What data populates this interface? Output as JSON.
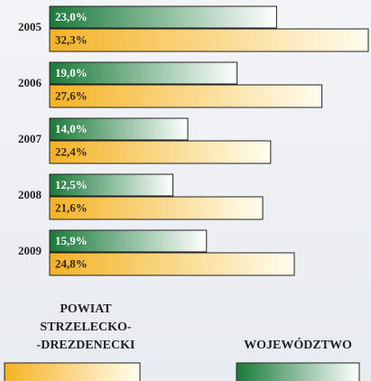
{
  "chart_data": {
    "type": "bar",
    "orientation": "horizontal",
    "categories": [
      "2005",
      "2006",
      "2007",
      "2008",
      "2009"
    ],
    "series": [
      {
        "name": "WOJEWÓDZTWO",
        "color": "#1a7a3a",
        "values": [
          23.0,
          19.0,
          14.0,
          12.5,
          15.9
        ],
        "value_labels": [
          "23,0%",
          "19,0%",
          "14,0%",
          "12,5%",
          "15,9%"
        ]
      },
      {
        "name": "POWIAT\nSTRZELECKO-\n-DREZDENECKI",
        "color": "#f4b223",
        "values": [
          32.3,
          27.6,
          22.4,
          21.6,
          24.8
        ],
        "value_labels": [
          "32,3%",
          "27,6%",
          "22,4%",
          "21,6%",
          "24,8%"
        ]
      }
    ],
    "legend": "bottom"
  }
}
